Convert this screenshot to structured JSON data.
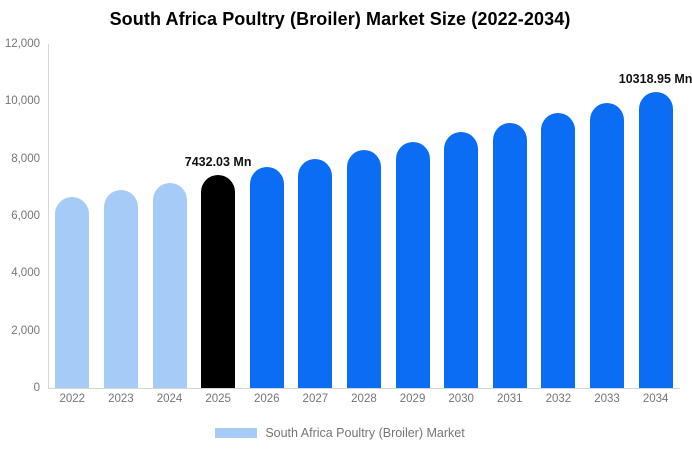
{
  "chart_data": {
    "type": "bar",
    "title": "South Africa Poultry (Broiler) Market Size (2022-2034)",
    "xlabel": "",
    "ylabel": "",
    "unit": "Mn",
    "categories": [
      "2022",
      "2023",
      "2024",
      "2025",
      "2026",
      "2027",
      "2028",
      "2029",
      "2030",
      "2031",
      "2032",
      "2033",
      "2034"
    ],
    "series": [
      {
        "name": "South Africa Poultry (Broiler) Market",
        "values": [
          6661.9,
          6909.3,
          7165.9,
          7432.03,
          7708.1,
          7994.4,
          8291.3,
          8599.3,
          8918.7,
          9250.0,
          9593.5,
          9949.9,
          10318.95
        ]
      }
    ],
    "ylim": [
      0,
      12000
    ],
    "yticks": [
      {
        "value": 0,
        "label": "0"
      },
      {
        "value": 2000,
        "label": "2,000"
      },
      {
        "value": 4000,
        "label": "4,000"
      },
      {
        "value": 6000,
        "label": "6,000"
      },
      {
        "value": 8000,
        "label": "8,000"
      },
      {
        "value": 10000,
        "label": "10,000"
      },
      {
        "value": 12000,
        "label": "12,000"
      }
    ],
    "grid": "off",
    "point_labels": [
      {
        "category": "2025",
        "text": "7432.03 Mn"
      },
      {
        "category": "2034",
        "text": "10318.95 Mn"
      }
    ],
    "bar_colors": [
      "#a5cbf6",
      "#a5cbf6",
      "#a5cbf6",
      "#000000",
      "#0b6cf4",
      "#0b6cf4",
      "#0b6cf4",
      "#0b6cf4",
      "#0b6cf4",
      "#0b6cf4",
      "#0b6cf4",
      "#0b6cf4",
      "#0b6cf4"
    ],
    "legend": {
      "label": "South Africa Poultry (Broiler) Market",
      "swatch_color": "#a5cbf6",
      "position": "bottom-center"
    },
    "colors": {
      "light_blue": "#a5cbf6",
      "blue": "#0b6cf4",
      "highlight_black": "#000000",
      "axis_text": "#757575",
      "axis_line": "#d6d6d6",
      "title_text": "#000000"
    }
  }
}
